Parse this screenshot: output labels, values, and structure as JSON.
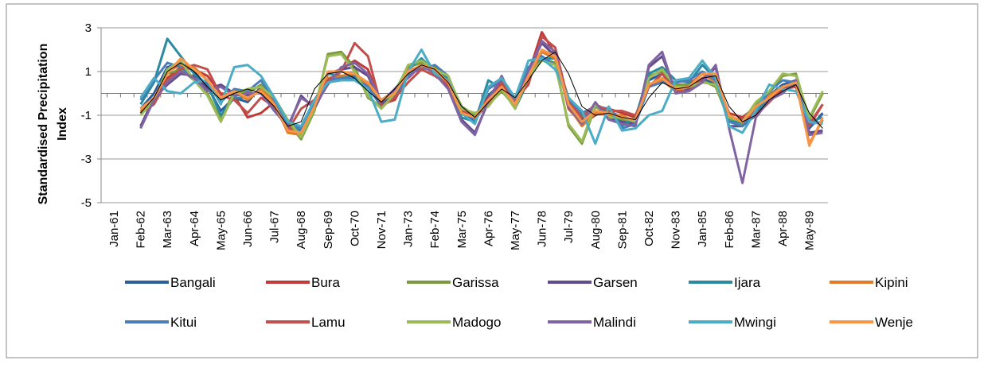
{
  "chart_data": {
    "type": "line",
    "y_label": "Standardised Precipitation Index",
    "categories": [
      "Jan-61",
      null,
      "Feb-62",
      null,
      "Mar-63",
      null,
      "Apr-64",
      null,
      "May-65",
      null,
      "Jun-66",
      null,
      "Jul-67",
      null,
      "Aug-68",
      null,
      "Sep-69",
      null,
      "Oct-70",
      null,
      "Nov-71",
      null,
      "Jan-73",
      null,
      "Feb-74",
      null,
      "Mar-75",
      null,
      "Apr-76",
      null,
      "May-77",
      null,
      "Jun-78",
      null,
      "Jul-79",
      null,
      "Aug-80",
      null,
      "Sep-81",
      null,
      "Oct-82",
      null,
      "Nov-83",
      null,
      "Jan-85",
      null,
      "Feb-86",
      null,
      "Mar-87",
      null,
      "Apr-88",
      null,
      "May-89",
      null
    ],
    "ylim": [
      -5,
      3
    ],
    "yticks": [
      -5,
      -3,
      -1,
      1,
      3
    ],
    "grid": true,
    "series": [
      {
        "name": "Bangali",
        "color": "#2a5f9e",
        "values": [
          null,
          null,
          -0.7,
          0,
          1.2,
          1.4,
          1.0,
          0.3,
          -0.8,
          -0.2,
          -0.4,
          0.3,
          -0.6,
          -1.6,
          -1.8,
          -0.3,
          0.6,
          1.0,
          0.9,
          0.4,
          -0.5,
          0.2,
          0.9,
          1.2,
          1.0,
          0.6,
          -0.9,
          -1.3,
          -0.1,
          0.5,
          -0.7,
          0.6,
          1.9,
          1.6,
          -0.4,
          -1.2,
          -0.6,
          -0.8,
          -1.1,
          -1.3,
          0.6,
          0.9,
          0.3,
          0.2,
          0.7,
          0.4,
          -1.1,
          -1.3,
          -0.8,
          -0.1,
          0.4,
          0.6,
          -1.6,
          -0.9
        ]
      },
      {
        "name": "Bura",
        "color": "#be3b37",
        "values": [
          null,
          null,
          -0.8,
          -0.4,
          0.7,
          1.2,
          1.1,
          0.8,
          0,
          -0.1,
          -1.1,
          -0.9,
          -0.4,
          -1.7,
          -1.6,
          -0.6,
          0.9,
          1.1,
          1.5,
          1.1,
          -0.5,
          -0.3,
          0.8,
          1.3,
          1.0,
          0.4,
          -0.7,
          -1.0,
          -0.2,
          0.4,
          -0.4,
          0.9,
          2.8,
          1.8,
          -0.7,
          -1.4,
          -1.0,
          -0.7,
          -0.9,
          -1.1,
          0.4,
          0.7,
          0.3,
          0.4,
          0.9,
          0.6,
          -0.9,
          -1.1,
          -0.6,
          -0.3,
          0.2,
          0.4,
          -1.4,
          -0.5
        ]
      },
      {
        "name": "Garissa",
        "color": "#7b9a3c",
        "values": [
          null,
          null,
          -0.9,
          -0.2,
          0.9,
          1.1,
          0.6,
          0,
          -1.2,
          0.1,
          0,
          0.4,
          -0.3,
          -1.3,
          -2.1,
          -0.8,
          1.8,
          1.9,
          1.2,
          -0.2,
          -0.6,
          0.1,
          1.2,
          1.4,
          1.2,
          0.7,
          -0.6,
          -1.0,
          -0.5,
          0.1,
          -0.6,
          0.7,
          1.6,
          1.4,
          -1.5,
          -2.3,
          -0.6,
          -1.0,
          -1.2,
          -1.4,
          0.8,
          1.0,
          0.4,
          0.4,
          0.6,
          0.3,
          -1.2,
          -1.4,
          -0.5,
          0,
          0.8,
          0.9,
          -1.2,
          0
        ]
      },
      {
        "name": "Garsen",
        "color": "#624b8a",
        "values": [
          null,
          null,
          -1.5,
          -0.2,
          0.4,
          0.9,
          0.8,
          0.2,
          0.4,
          0,
          -0.1,
          0.1,
          -0.7,
          -1.6,
          -0.1,
          -0.7,
          0.5,
          1.1,
          1.2,
          0.8,
          -0.5,
          0.1,
          0.8,
          1.2,
          1.0,
          0.3,
          -1.2,
          -1.8,
          -0.4,
          0.7,
          -0.4,
          1.1,
          2.3,
          1.7,
          -0.5,
          -1.3,
          -0.5,
          -1.1,
          -1.3,
          -1.4,
          1.2,
          1.7,
          0.1,
          0.2,
          0.6,
          1.2,
          -1.5,
          -1.5,
          -1.0,
          -0.2,
          0.1,
          0.5,
          -1.8,
          -1.7
        ]
      },
      {
        "name": "Ijara",
        "color": "#2a8aa0",
        "values": [
          null,
          null,
          -0.5,
          0.5,
          2.5,
          1.7,
          0.9,
          0.4,
          -1.0,
          -0.2,
          -0.2,
          0.1,
          -0.8,
          -1.4,
          -1.7,
          -0.4,
          0.9,
          0.8,
          0.8,
          0.5,
          -0.3,
          -0.1,
          1.1,
          1.6,
          1.0,
          0.7,
          -1.1,
          -1.3,
          0.6,
          0.2,
          -0.3,
          0.7,
          1.6,
          1.6,
          -0.2,
          -1.0,
          -0.9,
          -0.7,
          -1.5,
          -1.1,
          0.9,
          1.2,
          0.6,
          0.5,
          1.3,
          0.7,
          -1.3,
          -1.3,
          -0.9,
          -0.2,
          0.3,
          0.4,
          -1.3,
          -1.1
        ]
      },
      {
        "name": "Kipini",
        "color": "#e07b2a",
        "values": [
          null,
          null,
          -0.8,
          -0.3,
          1.0,
          1.3,
          1.2,
          0.6,
          -0.3,
          0.1,
          -0.3,
          0.2,
          -0.4,
          -1.8,
          -1.9,
          -0.5,
          0.7,
          0.8,
          0.9,
          0.4,
          -0.3,
          0.1,
          1.1,
          1.2,
          1.0,
          0.4,
          -0.9,
          -1.1,
          -0.4,
          0.3,
          -0.6,
          0.7,
          1.9,
          1.6,
          -0.6,
          -1.5,
          -0.9,
          -1.0,
          -1.0,
          -1.3,
          0.4,
          0.6,
          0.1,
          0.3,
          0.9,
          0.5,
          -1.0,
          -1.3,
          -0.7,
          -0.1,
          0.3,
          0.5,
          -2.3,
          -1.2
        ]
      },
      {
        "name": "Kitui",
        "color": "#4a7ebb",
        "values": [
          null,
          null,
          -0.3,
          0.6,
          1.4,
          1.2,
          0.7,
          0.5,
          -0.4,
          0.2,
          0.1,
          0.6,
          -0.3,
          -1.4,
          -1.6,
          -0.4,
          0.6,
          0.7,
          0.7,
          0.3,
          -0.6,
          -0.2,
          0.9,
          1.1,
          1.3,
          0.8,
          -0.8,
          -1.2,
          0.2,
          0.6,
          -0.3,
          1.2,
          1.7,
          1.3,
          -0.3,
          -0.9,
          -0.6,
          -0.7,
          -1.6,
          -1.4,
          0.3,
          0.5,
          0.5,
          0.6,
          1.0,
          0.6,
          -1.3,
          -1.5,
          -0.8,
          0.1,
          0.6,
          0.5,
          -1.4,
          -1.3
        ]
      },
      {
        "name": "Lamu",
        "color": "#c0504d",
        "values": [
          null,
          null,
          -0.9,
          -0.5,
          0.6,
          1.1,
          1.3,
          1.1,
          -0.1,
          -0.3,
          -0.9,
          -0.2,
          -0.6,
          -1.7,
          -0.7,
          -0.3,
          0.6,
          1.0,
          2.3,
          1.7,
          -0.6,
          -0.2,
          0.5,
          1.1,
          0.8,
          0.4,
          -0.8,
          -1.1,
          -0.5,
          0.5,
          -0.3,
          0.4,
          2.6,
          2.1,
          -0.4,
          -1.1,
          -0.5,
          -0.8,
          -0.8,
          -1.0,
          0.3,
          0.9,
          0.1,
          0.1,
          0.7,
          0.9,
          -1.1,
          -1.2,
          -1.0,
          -0.4,
          0.2,
          0.3,
          -1.5,
          -0.5
        ]
      },
      {
        "name": "Madogo",
        "color": "#9bbb59",
        "values": [
          null,
          null,
          -1.0,
          -0.3,
          1.1,
          1.5,
          0.6,
          -0.1,
          -1.3,
          0,
          0.2,
          0.3,
          -0.2,
          -1.2,
          -2.0,
          -0.7,
          1.7,
          1.8,
          1.0,
          -0.1,
          -0.7,
          0,
          1.3,
          1.5,
          1.1,
          0.8,
          -0.7,
          -0.9,
          -0.6,
          0.2,
          -0.7,
          0.8,
          1.5,
          1.3,
          -1.4,
          -2.2,
          -0.5,
          -1.1,
          -1.1,
          -1.3,
          0.7,
          1.1,
          0.3,
          0.3,
          0.5,
          0.4,
          -1.1,
          -1.3,
          -0.4,
          0.1,
          0.9,
          0.8,
          -1.1,
          0.1
        ]
      },
      {
        "name": "Malindi",
        "color": "#8064a2",
        "values": [
          null,
          null,
          -1.6,
          -0.3,
          0.5,
          1.0,
          0.7,
          0.1,
          0.3,
          -0.1,
          0,
          0,
          -0.8,
          -1.5,
          -0.2,
          -0.6,
          0.4,
          1.2,
          1.4,
          0.9,
          -0.4,
          0.2,
          0.7,
          1.3,
          0.9,
          0.2,
          -1.3,
          -1.9,
          -0.3,
          0.8,
          -0.5,
          1.0,
          2.4,
          1.9,
          -0.6,
          -1.4,
          -0.4,
          -1.2,
          -1.4,
          -1.5,
          1.3,
          1.9,
          0,
          0.1,
          0.5,
          1.3,
          -1.6,
          -4.1,
          -1.1,
          -0.3,
          0,
          0.6,
          -1.9,
          -1.8
        ]
      },
      {
        "name": "Mwingi",
        "color": "#4bacc6",
        "values": [
          null,
          null,
          -0.2,
          0.7,
          0.1,
          0,
          0.5,
          0.6,
          -0.5,
          1.2,
          1.3,
          0.8,
          -0.2,
          -1.3,
          -1.5,
          -0.3,
          0.5,
          0.6,
          0.6,
          0.2,
          -1.3,
          -1.2,
          1.0,
          2.0,
          0.9,
          0.6,
          -0.9,
          -1.4,
          0.3,
          0.7,
          -0.2,
          1.5,
          1.6,
          1.1,
          -0.2,
          -0.8,
          -2.3,
          -0.6,
          -1.7,
          -1.6,
          -1.0,
          -0.8,
          0.6,
          0.7,
          1.5,
          0.7,
          -1.5,
          -1.8,
          -0.8,
          0.4,
          0.2,
          0.1,
          -1.3,
          -1.4
        ]
      },
      {
        "name": "Wenje",
        "color": "#f79646",
        "values": [
          null,
          null,
          -0.7,
          -0.2,
          0.9,
          1.6,
          1.1,
          0.6,
          -0.2,
          0.1,
          -0.2,
          0.1,
          -0.5,
          -1.7,
          -1.8,
          -0.6,
          1.0,
          1.0,
          0.9,
          0.5,
          -0.3,
          0,
          1.0,
          1.3,
          1.1,
          0.5,
          -0.9,
          -1.1,
          -0.3,
          0.3,
          -0.5,
          0.8,
          2.0,
          1.7,
          -0.5,
          -1.3,
          -0.8,
          -0.9,
          -1.1,
          -1.2,
          0.4,
          0.7,
          0.2,
          0.3,
          0.9,
          0.9,
          -1.0,
          -1.3,
          -0.6,
          -0.2,
          0.3,
          0.5,
          -2.4,
          -1.1
        ]
      },
      {
        "color": "#000000",
        "values": [
          null,
          null,
          -0.9,
          -0.2,
          1.0,
          1.4,
          1.0,
          0.3,
          -0.3,
          0,
          0.2,
          0,
          -0.6,
          -1.5,
          -1.3,
          0.2,
          0.9,
          1.0,
          0.7,
          0.1,
          -0.4,
          0.2,
          0.9,
          1.3,
          1.1,
          0.5,
          -0.6,
          -1.1,
          -0.4,
          0.2,
          -0.2,
          0.6,
          1.5,
          1.9,
          0.9,
          -0.6,
          -1.0,
          -0.9,
          -1.1,
          -1.2,
          -0.2,
          0.5,
          0.2,
          0.3,
          0.7,
          0.8,
          -0.6,
          -1.3,
          -1.0,
          -0.3,
          0.1,
          0.4,
          -0.9,
          -1.6
        ]
      }
    ]
  }
}
